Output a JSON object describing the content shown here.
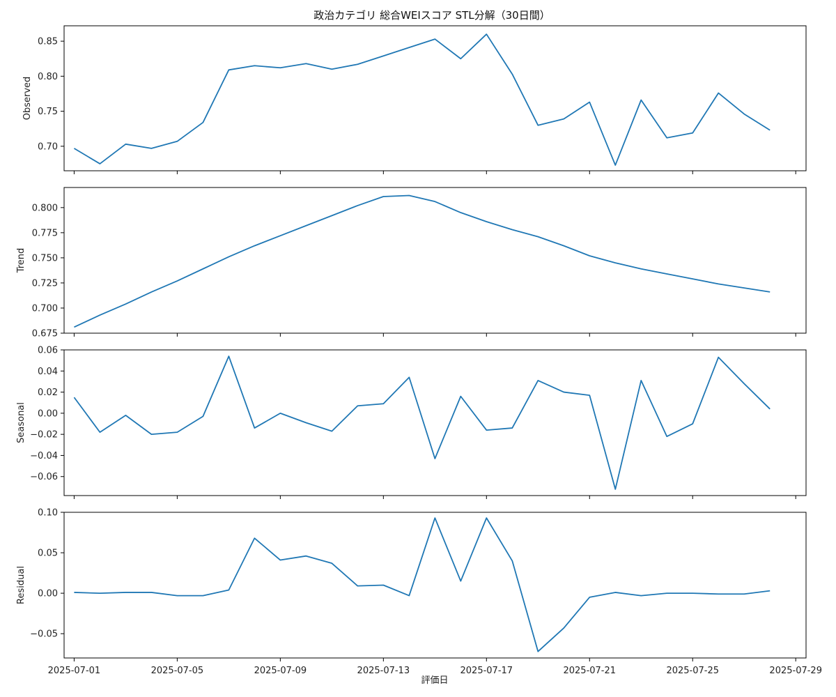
{
  "chart_data": {
    "type": "line",
    "title": "政治カテゴリ 総合WEIスコア STL分解（30日間）",
    "xlabel": "評価日",
    "x": [
      "2025-07-01",
      "2025-07-02",
      "2025-07-03",
      "2025-07-04",
      "2025-07-05",
      "2025-07-06",
      "2025-07-07",
      "2025-07-08",
      "2025-07-09",
      "2025-07-10",
      "2025-07-11",
      "2025-07-12",
      "2025-07-13",
      "2025-07-14",
      "2025-07-15",
      "2025-07-16",
      "2025-07-17",
      "2025-07-18",
      "2025-07-19",
      "2025-07-20",
      "2025-07-21",
      "2025-07-22",
      "2025-07-23",
      "2025-07-24",
      "2025-07-25",
      "2025-07-26",
      "2025-07-27",
      "2025-07-28"
    ],
    "x_tick_labels": [
      "2025-07-01",
      "2025-07-05",
      "2025-07-09",
      "2025-07-13",
      "2025-07-17",
      "2025-07-21",
      "2025-07-25",
      "2025-07-29"
    ],
    "x_range": [
      "2025-06-30",
      "2025-07-29"
    ],
    "line_color": "#1f77b4",
    "grid": false,
    "panels": [
      {
        "ylabel": "Observed",
        "ylim": [
          0.665,
          0.872
        ],
        "yticks": [
          0.7,
          0.75,
          0.8,
          0.85
        ],
        "ytick_labels": [
          "0.70",
          "0.75",
          "0.80",
          "0.85"
        ],
        "values": [
          0.697,
          0.675,
          0.703,
          0.697,
          0.707,
          0.734,
          0.809,
          0.815,
          0.812,
          0.818,
          0.81,
          0.817,
          0.829,
          0.841,
          0.853,
          0.825,
          0.86,
          0.803,
          0.73,
          0.739,
          0.763,
          0.673,
          0.766,
          0.712,
          0.719,
          0.776,
          0.746,
          0.723
        ]
      },
      {
        "ylabel": "Trend",
        "ylim": [
          0.675,
          0.82
        ],
        "yticks": [
          0.675,
          0.7,
          0.725,
          0.75,
          0.775,
          0.8
        ],
        "ytick_labels": [
          "0.675",
          "0.700",
          "0.725",
          "0.750",
          "0.775",
          "0.800"
        ],
        "values": [
          0.681,
          0.693,
          0.704,
          0.716,
          0.727,
          0.739,
          0.751,
          0.762,
          0.772,
          0.782,
          0.792,
          0.802,
          0.811,
          0.812,
          0.806,
          0.795,
          0.786,
          0.778,
          0.771,
          0.762,
          0.752,
          0.745,
          0.739,
          0.734,
          0.729,
          0.724,
          0.72,
          0.716
        ]
      },
      {
        "ylabel": "Seasonal",
        "ylim": [
          -0.078,
          0.06
        ],
        "yticks": [
          -0.06,
          -0.04,
          -0.02,
          0.0,
          0.02,
          0.04,
          0.06
        ],
        "ytick_labels": [
          "−0.06",
          "−0.04",
          "−0.02",
          "0.00",
          "0.02",
          "0.04",
          "0.06"
        ],
        "values": [
          0.015,
          -0.018,
          -0.002,
          -0.02,
          -0.018,
          -0.003,
          0.054,
          -0.014,
          0.0,
          -0.009,
          -0.017,
          0.007,
          0.009,
          0.034,
          -0.043,
          0.016,
          -0.016,
          -0.014,
          0.031,
          0.02,
          0.017,
          -0.072,
          0.031,
          -0.022,
          -0.01,
          0.053,
          0.028,
          0.004
        ]
      },
      {
        "ylabel": "Residual",
        "ylim": [
          -0.08,
          0.1
        ],
        "yticks": [
          -0.05,
          0.0,
          0.05,
          0.1
        ],
        "ytick_labels": [
          "−0.05",
          "0.00",
          "0.05",
          "0.10"
        ],
        "values": [
          0.001,
          0.0,
          0.001,
          0.001,
          -0.003,
          -0.003,
          0.004,
          0.068,
          0.041,
          0.046,
          0.037,
          0.009,
          0.01,
          -0.003,
          0.093,
          0.015,
          0.093,
          0.04,
          -0.072,
          -0.043,
          -0.005,
          0.001,
          -0.003,
          0.0,
          0.0,
          -0.001,
          -0.001,
          0.003
        ]
      }
    ]
  }
}
